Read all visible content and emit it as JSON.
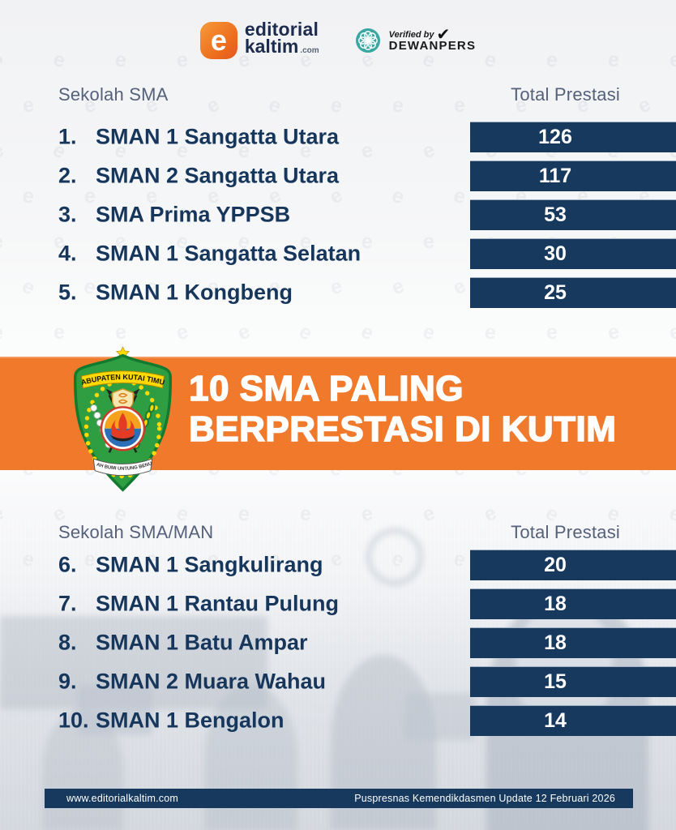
{
  "header": {
    "brand": {
      "icon_letter": "e",
      "name_top": "editorial",
      "name_bottom": "kaltim",
      "suffix": ".com"
    },
    "verified": {
      "prefix": "Verified by",
      "check": "✔",
      "name": "DEWANPERS"
    }
  },
  "banner": {
    "title_line1": "10 SMA PALING",
    "title_line2": "BERPRESTASI DI KUTIM",
    "logo": {
      "top_text": "KABUPATEN KUTAI TIMUR",
      "motto": "TUAH BUMI UNTUNG BENUA"
    }
  },
  "table_top": {
    "col_school": "Sekolah SMA",
    "col_total": "Total Prestasi",
    "rows": [
      {
        "rank": "1.",
        "school": "SMAN 1 Sangatta Utara",
        "total": "126"
      },
      {
        "rank": "2.",
        "school": "SMAN 2 Sangatta Utara",
        "total": "117"
      },
      {
        "rank": "3.",
        "school": "SMA Prima YPPSB",
        "total": "53"
      },
      {
        "rank": "4.",
        "school": "SMAN 1 Sangatta Selatan",
        "total": "30"
      },
      {
        "rank": "5.",
        "school": "SMAN 1 Kongbeng",
        "total": "25"
      }
    ]
  },
  "table_bottom": {
    "col_school": "Sekolah SMA/MAN",
    "col_total": "Total Prestasi",
    "rows": [
      {
        "rank": "6.",
        "school": "SMAN 1 Sangkulirang",
        "total": "20"
      },
      {
        "rank": "7.",
        "school": "SMAN 1 Rantau Pulung",
        "total": "18"
      },
      {
        "rank": "8.",
        "school": "SMAN 1 Batu Ampar",
        "total": "18"
      },
      {
        "rank": "9.",
        "school": "SMAN 2 Muara Wahau",
        "total": "15"
      },
      {
        "rank": "10.",
        "school": "SMAN 1 Bengalon",
        "total": "14"
      }
    ]
  },
  "footer": {
    "website": "www.editorialkaltim.com",
    "source": "Puspresnas Kemendikdasmen Update 12 Februari 2026"
  },
  "watermark_glyph": "e",
  "colors": {
    "orange": "#F0792B",
    "navy": "#16395D",
    "header_text": "#55617A",
    "row_text": "#17365C",
    "logo_green": "#2F9D42",
    "logo_yellow": "#FFD900",
    "verified_teal": "#3BA7A2"
  },
  "chart_data": {
    "type": "table",
    "title": "10 SMA PALING BERPRESTASI DI KUTIM",
    "columns": [
      "Sekolah",
      "Total Prestasi"
    ],
    "rows": [
      [
        "SMAN 1 Sangatta Utara",
        126
      ],
      [
        "SMAN 2 Sangatta Utara",
        117
      ],
      [
        "SMA Prima YPPSB",
        53
      ],
      [
        "SMAN 1 Sangatta Selatan",
        30
      ],
      [
        "SMAN 1 Kongbeng",
        25
      ],
      [
        "SMAN 1 Sangkulirang",
        20
      ],
      [
        "SMAN 1 Rantau Pulung",
        18
      ],
      [
        "SMAN 1 Batu Ampar",
        18
      ],
      [
        "SMAN 2 Muara Wahau",
        15
      ],
      [
        "SMAN 1 Bengalon",
        14
      ]
    ],
    "source": "Puspresnas Kemendikdasmen Update 12 Februari 2026"
  }
}
